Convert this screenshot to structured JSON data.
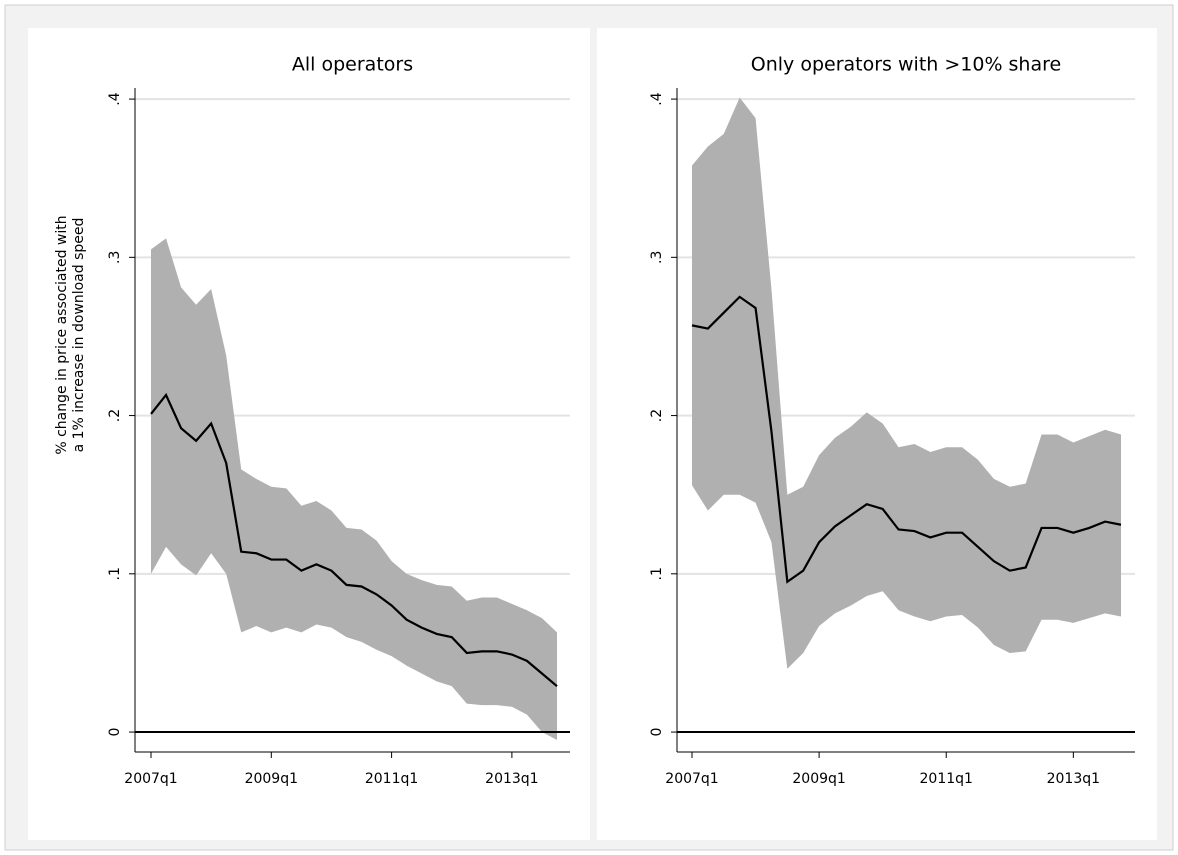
{
  "chart_data": [
    {
      "type": "line_band",
      "title": "All operators",
      "ylabel": [
        "% change in price associated with",
        "a 1% increase in download speed"
      ],
      "categories": [
        "2007q1",
        null,
        null,
        null,
        null,
        null,
        null,
        null,
        "2009q1",
        null,
        null,
        null,
        null,
        null,
        null,
        null,
        "2011q1",
        null,
        null,
        null,
        null,
        null,
        null,
        null,
        "2013q1",
        null,
        null,
        null
      ],
      "values": [
        0.201,
        0.213,
        0.192,
        0.184,
        0.195,
        0.17,
        0.114,
        0.113,
        0.109,
        0.109,
        0.102,
        0.106,
        0.102,
        0.093,
        0.092,
        0.087,
        0.08,
        0.071,
        0.066,
        0.062,
        0.06,
        0.05,
        0.051,
        0.051,
        0.049,
        0.045,
        0.037,
        0.029
      ],
      "upper": [
        0.305,
        0.312,
        0.281,
        0.27,
        0.28,
        0.238,
        0.166,
        0.16,
        0.155,
        0.154,
        0.143,
        0.146,
        0.14,
        0.129,
        0.128,
        0.121,
        0.108,
        0.1,
        0.096,
        0.093,
        0.092,
        0.083,
        0.085,
        0.085,
        0.081,
        0.077,
        0.072,
        0.063
      ],
      "lower": [
        0.1,
        0.117,
        0.106,
        0.099,
        0.113,
        0.1,
        0.063,
        0.067,
        0.063,
        0.066,
        0.063,
        0.068,
        0.066,
        0.06,
        0.057,
        0.052,
        0.048,
        0.042,
        0.037,
        0.032,
        0.029,
        0.018,
        0.017,
        0.017,
        0.016,
        0.011,
        0.0,
        -0.005
      ],
      "color": "#000000",
      "band_color": "#b0b0b0",
      "ylim": [
        -0.0126,
        0.407
      ],
      "yticks": [
        0,
        {
          "value": 0.1,
          "label": ".1"
        },
        {
          "value": 0.2,
          "label": ".2"
        },
        {
          "value": 0.3,
          "label": ".3"
        },
        {
          "value": 0.4,
          "label": ".4"
        }
      ],
      "grid": true
    },
    {
      "type": "line_band",
      "title": "Only operators with >10% share",
      "categories": [
        "2007q1",
        null,
        null,
        null,
        null,
        null,
        null,
        null,
        "2009q1",
        null,
        null,
        null,
        null,
        null,
        null,
        null,
        "2011q1",
        null,
        null,
        null,
        null,
        null,
        null,
        null,
        "2013q1",
        null,
        null,
        null
      ],
      "values": [
        0.257,
        0.255,
        0.265,
        0.275,
        0.268,
        0.19,
        0.095,
        0.102,
        0.12,
        0.13,
        0.137,
        0.144,
        0.141,
        0.128,
        0.127,
        0.123,
        0.126,
        0.126,
        0.117,
        0.108,
        0.102,
        0.104,
        0.129,
        0.129,
        0.126,
        0.129,
        0.133,
        0.131
      ],
      "upper": [
        0.358,
        0.37,
        0.378,
        0.401,
        0.388,
        0.28,
        0.15,
        0.155,
        0.175,
        0.186,
        0.193,
        0.202,
        0.195,
        0.18,
        0.182,
        0.177,
        0.18,
        0.18,
        0.172,
        0.16,
        0.155,
        0.157,
        0.188,
        0.188,
        0.183,
        0.187,
        0.191,
        0.188
      ],
      "lower": [
        0.156,
        0.14,
        0.15,
        0.15,
        0.145,
        0.12,
        0.04,
        0.05,
        0.067,
        0.075,
        0.08,
        0.086,
        0.089,
        0.077,
        0.073,
        0.07,
        0.073,
        0.074,
        0.066,
        0.055,
        0.05,
        0.051,
        0.071,
        0.071,
        0.069,
        0.072,
        0.075,
        0.073
      ],
      "color": "#000000",
      "band_color": "#b0b0b0",
      "ylim": [
        -0.0126,
        0.407
      ],
      "yticks": [
        0,
        {
          "value": 0.1,
          "label": ".1"
        },
        {
          "value": 0.2,
          "label": ".2"
        },
        {
          "value": 0.3,
          "label": ".3"
        },
        {
          "value": 0.4,
          "label": ".4"
        }
      ],
      "grid": true
    }
  ]
}
